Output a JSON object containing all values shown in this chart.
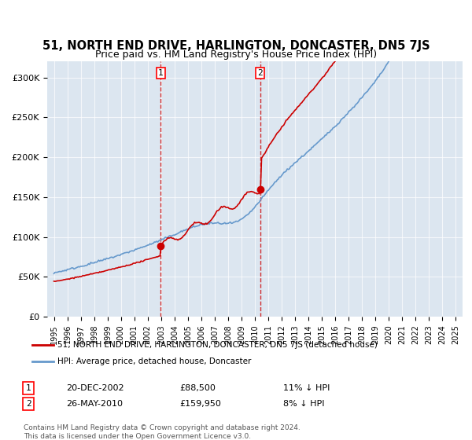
{
  "title": "51, NORTH END DRIVE, HARLINGTON, DONCASTER, DN5 7JS",
  "subtitle": "Price paid vs. HM Land Registry's House Price Index (HPI)",
  "title_fontsize": 11,
  "subtitle_fontsize": 9.5,
  "ylim": [
    0,
    320000
  ],
  "yticks": [
    0,
    50000,
    100000,
    150000,
    200000,
    250000,
    300000
  ],
  "ytick_labels": [
    "£0",
    "£50K",
    "£100K",
    "£150K",
    "£200K",
    "£250K",
    "£300K"
  ],
  "xtick_years": [
    1995,
    1996,
    1997,
    1998,
    1999,
    2000,
    2001,
    2002,
    2003,
    2004,
    2005,
    2006,
    2007,
    2008,
    2009,
    2010,
    2011,
    2012,
    2013,
    2014,
    2015,
    2016,
    2017,
    2018,
    2019,
    2020,
    2021,
    2022,
    2023,
    2024,
    2025
  ],
  "purchase_dates": [
    2002.97,
    2010.4
  ],
  "purchase_prices": [
    88500,
    159950
  ],
  "purchase_labels": [
    "1",
    "2"
  ],
  "vline_color": "#cc0000",
  "vline_style": "--",
  "purchase_marker_color": "#cc0000",
  "hpi_color": "#6699cc",
  "price_color": "#cc0000",
  "background_color": "#dce6f0",
  "plot_bg_color": "#dce6f0",
  "legend_entry1": "51, NORTH END DRIVE, HARLINGTON, DONCASTER, DN5 7JS (detached house)",
  "legend_entry2": "HPI: Average price, detached house, Doncaster",
  "annotation1_date": "20-DEC-2002",
  "annotation1_price": "£88,500",
  "annotation1_hpi": "11% ↓ HPI",
  "annotation2_date": "26-MAY-2010",
  "annotation2_price": "£159,950",
  "annotation2_hpi": "8% ↓ HPI",
  "footer": "Contains HM Land Registry data © Crown copyright and database right 2024.\nThis data is licensed under the Open Government Licence v3.0."
}
